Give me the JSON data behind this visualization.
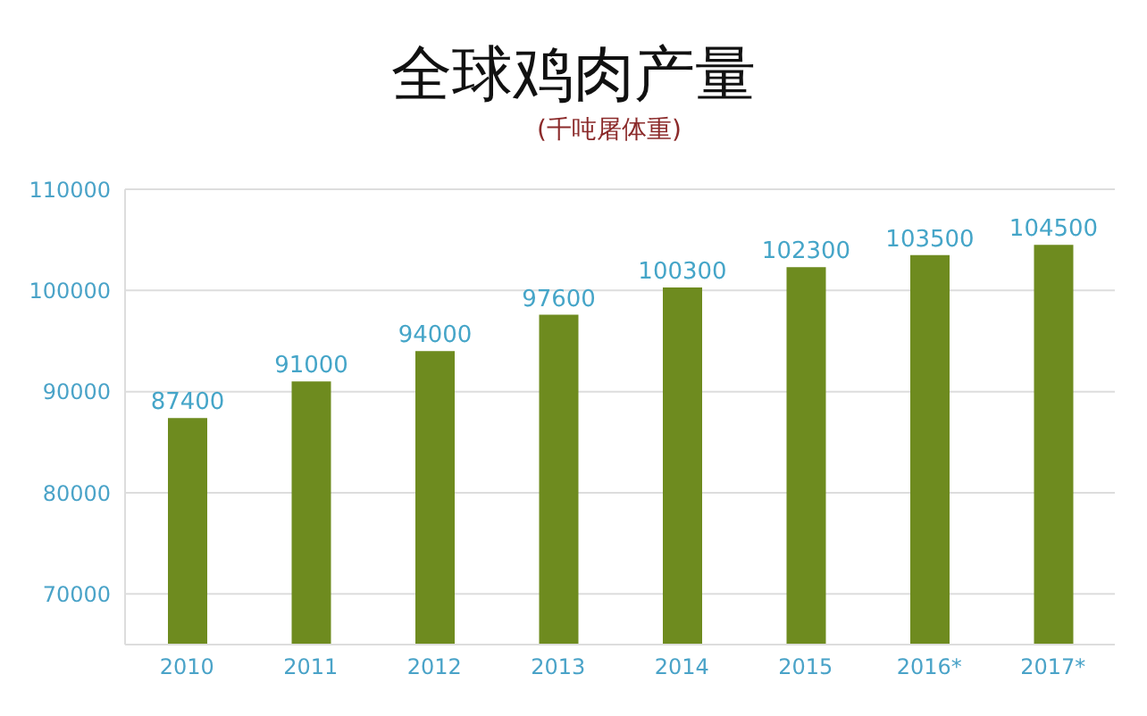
{
  "chart_data": {
    "type": "bar",
    "title": "全球鸡肉产量",
    "subtitle": "(千吨屠体重)",
    "categories": [
      "2010",
      "2011",
      "2012",
      "2013",
      "2014",
      "2015",
      "2016*",
      "2017*"
    ],
    "values": [
      87400,
      91000,
      94000,
      97600,
      100300,
      102300,
      103500,
      104500
    ],
    "color": "#6e8b1f",
    "ylim": [
      65000,
      110000
    ],
    "yticks": [
      70000,
      80000,
      90000,
      100000,
      110000
    ],
    "grid": "y",
    "data_labels": true
  }
}
